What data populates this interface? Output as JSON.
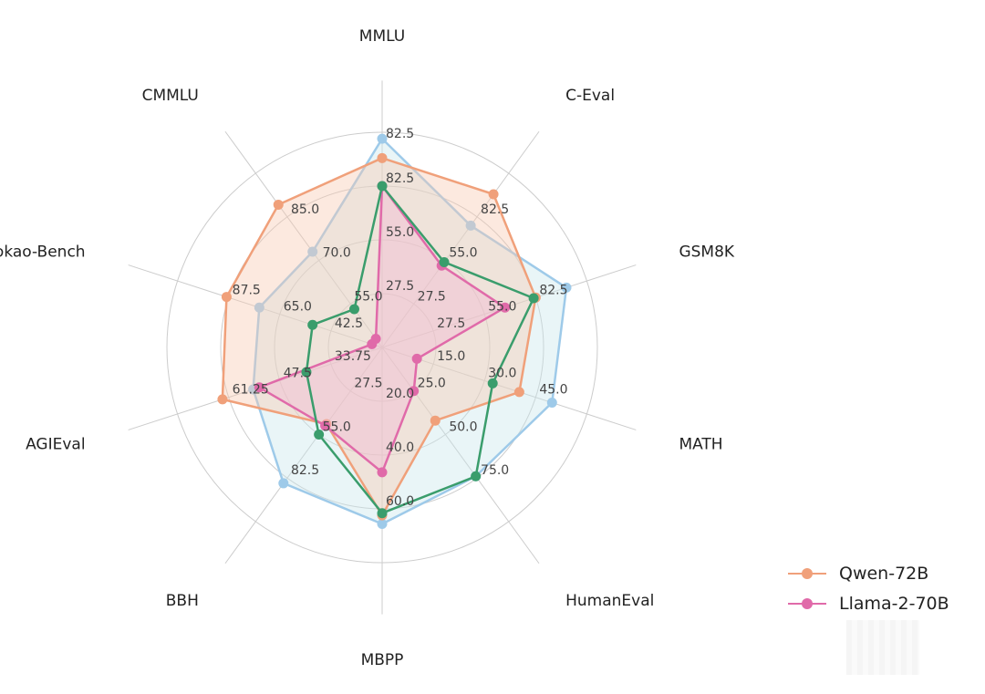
{
  "chart_data": {
    "type": "radar",
    "axes": [
      "MMLU",
      "C-Eval",
      "GSM8K",
      "MATH",
      "HumanEval",
      "MBPP",
      "BBH",
      "AGIEval",
      "Gaokao-Bench",
      "CMMLU"
    ],
    "tick_labels": [
      [
        "27.5",
        "55.0",
        "82.5"
      ],
      [
        "27.5",
        "55.0",
        "82.5"
      ],
      [
        "27.5",
        "55.0",
        "82.5"
      ],
      [
        "15.0",
        "30.0",
        "45.0"
      ],
      [
        "25.0",
        "50.0",
        "75.0"
      ],
      [
        "20.0",
        "40.0",
        "60.0"
      ],
      [
        "27.5",
        "55.0",
        "82.5"
      ],
      [
        "33.75",
        "47.5",
        "61.25"
      ],
      [
        "42.5",
        "65.0",
        "87.5"
      ],
      [
        "55.0",
        "70.0",
        "85.0"
      ]
    ],
    "series": [
      {
        "name": "Qwen-72B",
        "color": "#f0a07a",
        "fill": "#f8c9b0",
        "values": [
          0.88,
          0.88,
          0.75,
          0.67,
          0.42,
          0.78,
          0.44,
          0.78,
          0.76,
          0.82
        ]
      },
      {
        "name": "Llama-2-70B",
        "color": "#e06aa9",
        "fill": "#f3b6d2",
        "values": [
          0.75,
          0.47,
          0.6,
          0.17,
          0.25,
          0.58,
          0.45,
          0.6,
          0.05,
          0.05
        ]
      },
      {
        "name": "",
        "color": "#3a9d6c",
        "fill": "none",
        "values": [
          0.75,
          0.49,
          0.74,
          0.54,
          0.74,
          0.77,
          0.5,
          0.37,
          0.34,
          0.22
        ]
      },
      {
        "name": "",
        "color": "#9ecae9",
        "fill": "#c7e6ec",
        "values": [
          0.97,
          0.7,
          0.9,
          0.83,
          0.74,
          0.82,
          0.78,
          0.63,
          0.6,
          0.55
        ]
      }
    ],
    "legend": [
      "Qwen-72B",
      "Llama-2-70B"
    ],
    "legend_position": "bottom-right",
    "grid": true
  }
}
